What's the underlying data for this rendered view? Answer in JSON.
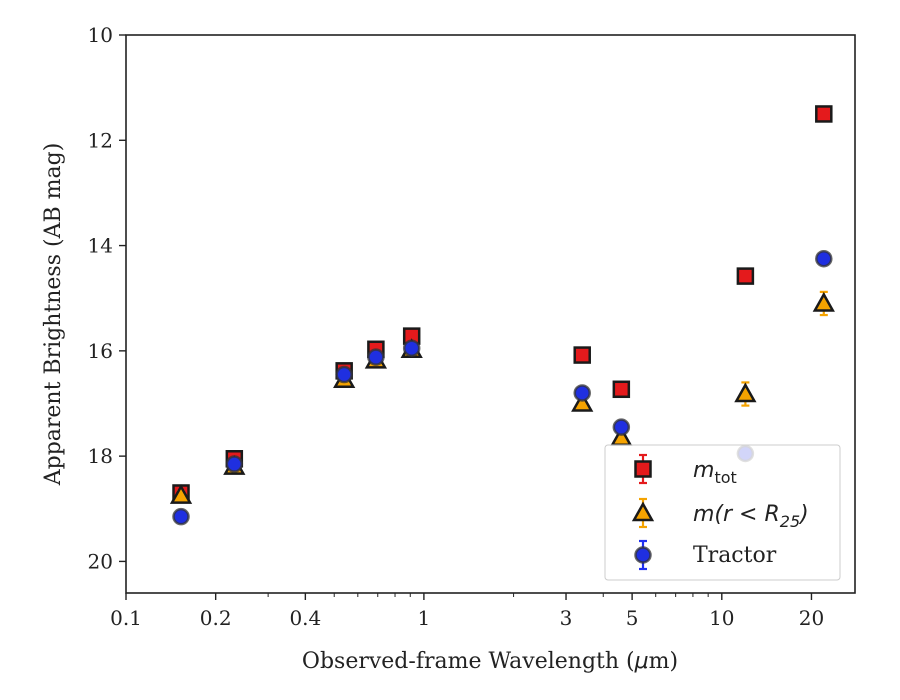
{
  "chart_data": {
    "type": "scatter",
    "title": "",
    "xlabel_prefix": "Observed-frame Wavelength (",
    "xlabel_mu": "μ",
    "xlabel_suffix": "m)",
    "ylabel": "Apparent Brightness (AB mag)",
    "x_scale": "log",
    "xlim": [
      0.1,
      28
    ],
    "ylim": [
      20.6,
      10
    ],
    "y_inverted": true,
    "x_ticks": [
      0.1,
      0.2,
      0.4,
      1,
      3,
      5,
      10,
      20
    ],
    "x_tick_labels": [
      "0.1",
      "0.2",
      "0.4",
      "1",
      "3",
      "5",
      "10",
      "20"
    ],
    "y_ticks": [
      10,
      12,
      14,
      16,
      18,
      20
    ],
    "y_tick_labels": [
      "10",
      "12",
      "14",
      "16",
      "18",
      "20"
    ],
    "grid": false,
    "legend_position": "lower-right",
    "series": [
      {
        "name": "m_tot",
        "legend_main": "m",
        "legend_sub": "tot",
        "marker": "square",
        "face_color": "#e41a1c",
        "error_color": "#e41a1c",
        "points": [
          {
            "x": 0.153,
            "y": 18.7,
            "err": 0.1
          },
          {
            "x": 0.231,
            "y": 18.05,
            "err": 0.05
          },
          {
            "x": 0.54,
            "y": 16.38,
            "err": 0.05
          },
          {
            "x": 0.69,
            "y": 15.97,
            "err": 0.05
          },
          {
            "x": 0.91,
            "y": 15.72,
            "err": 0.05
          },
          {
            "x": 3.4,
            "y": 16.08,
            "err": 0.05
          },
          {
            "x": 4.6,
            "y": 16.73,
            "err": 0.05
          },
          {
            "x": 12.0,
            "y": 14.58,
            "err": 0.05
          },
          {
            "x": 22.0,
            "y": 11.5,
            "err": 0.05
          }
        ]
      },
      {
        "name": "m(r < R25)",
        "legend_main": "m(r < R",
        "legend_sub": "25",
        "legend_close": ")",
        "marker": "triangle",
        "face_color": "#f5a300",
        "error_color": "#f5a300",
        "points": [
          {
            "x": 0.153,
            "y": 18.75,
            "err": 0.08
          },
          {
            "x": 0.231,
            "y": 18.2,
            "err": 0.05
          },
          {
            "x": 0.54,
            "y": 16.55,
            "err": 0.05
          },
          {
            "x": 0.69,
            "y": 16.18,
            "err": 0.05
          },
          {
            "x": 0.91,
            "y": 15.98,
            "err": 0.05
          },
          {
            "x": 3.4,
            "y": 17.0,
            "err": 0.05
          },
          {
            "x": 4.6,
            "y": 17.65,
            "err": 0.05
          },
          {
            "x": 12.0,
            "y": 16.82,
            "err": 0.22
          },
          {
            "x": 22.0,
            "y": 15.1,
            "err": 0.22
          }
        ]
      },
      {
        "name": "Tractor",
        "legend_main": "Tractor",
        "marker": "circle",
        "face_color": "#1f2fe0",
        "error_color": "#2030f0",
        "points": [
          {
            "x": 0.153,
            "y": 19.15,
            "err": 0.08
          },
          {
            "x": 0.231,
            "y": 18.15,
            "err": 0.05
          },
          {
            "x": 0.54,
            "y": 16.45,
            "err": 0.05
          },
          {
            "x": 0.69,
            "y": 16.12,
            "err": 0.05
          },
          {
            "x": 0.91,
            "y": 15.95,
            "err": 0.05
          },
          {
            "x": 3.4,
            "y": 16.8,
            "err": 0.08
          },
          {
            "x": 4.6,
            "y": 17.45,
            "err": 0.08
          },
          {
            "x": 12.0,
            "y": 17.95,
            "err": 0.05
          },
          {
            "x": 22.0,
            "y": 14.25,
            "err": 0.08
          }
        ]
      }
    ]
  }
}
